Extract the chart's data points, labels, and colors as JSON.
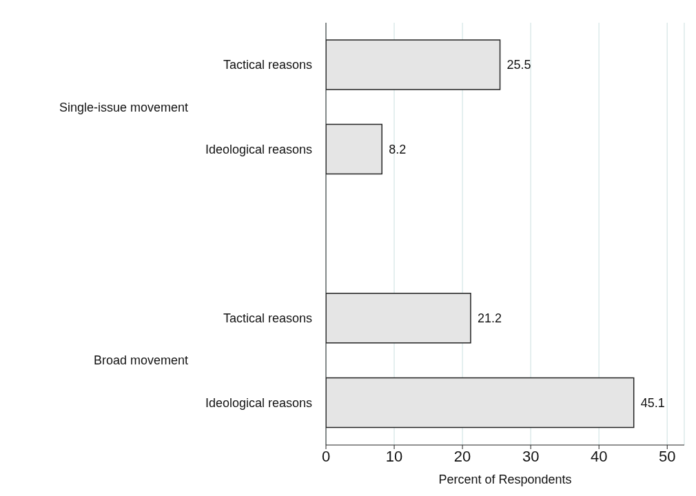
{
  "chart_data": {
    "type": "bar",
    "orientation": "horizontal",
    "categories": [
      "Tactical reasons",
      "Ideological reasons",
      null,
      "Tactical reasons",
      "Ideological reasons"
    ],
    "values": [
      25.5,
      8.2,
      null,
      21.2,
      45.1
    ],
    "color": "#e5e5e5",
    "xlim": [
      0,
      52.5
    ],
    "xticks": [
      0,
      10,
      20,
      30,
      40,
      50
    ],
    "xlabel": "Percent of Respondents",
    "annotations": [
      "Single-issue movement",
      "Broad movement"
    ],
    "grid": "x",
    "data_labels": true
  }
}
